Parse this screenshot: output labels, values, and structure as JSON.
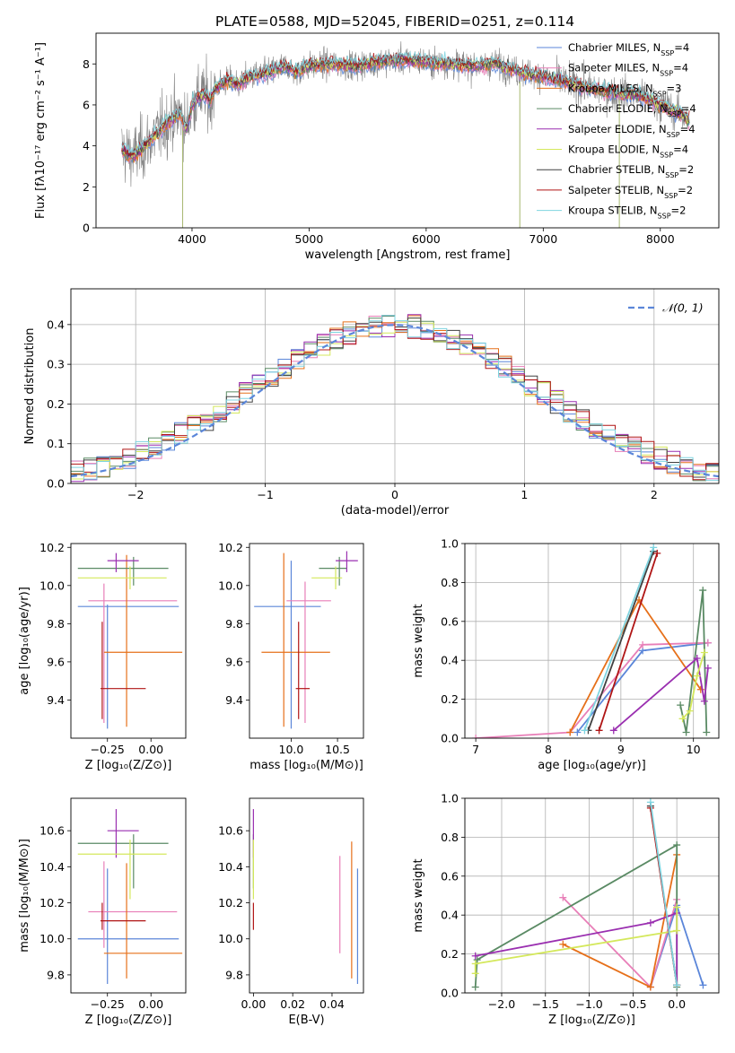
{
  "figure": {
    "title": "PLATE=0588, MJD=52045, FIBERID=0251, z=0.114"
  },
  "colors": {
    "chabrier_miles": "#5b86d9",
    "salpeter_miles": "#e87fb8",
    "kroupa_miles": "#e6701a",
    "chabrier_elodie": "#5a8a64",
    "salpeter_elodie": "#9a2fb0",
    "kroupa_elodie": "#d4e85c",
    "chabrier_stelib": "#404040",
    "salpeter_stelib": "#b01515",
    "kroupa_stelib": "#7fd4e0",
    "data": "#808080",
    "gaussian": "#5b86d9",
    "grid": "#b0b0b0"
  },
  "chart_data": [
    {
      "id": "spectrum",
      "type": "line",
      "title": "PLATE=0588, MJD=52045, FIBERID=0251, z=0.114",
      "xlabel": "wavelength [Angstrom, rest frame]",
      "ylabel": "Flux [fλ10⁻¹⁷ erg cm⁻² s⁻¹ A⁻¹]",
      "xlim": [
        3180,
        8500
      ],
      "ylim": [
        0,
        9.5
      ],
      "xticks": [
        4000,
        5000,
        6000,
        7000,
        8000
      ],
      "yticks": [
        0,
        2,
        4,
        6,
        8
      ],
      "grid": false,
      "legend_position": "top-right",
      "continuum": {
        "x": [
          3400,
          3500,
          3600,
          3700,
          3800,
          3900,
          3950,
          4000,
          4050,
          4100,
          4150,
          4200,
          4300,
          4400,
          4500,
          4600,
          4700,
          4800,
          4900,
          5000,
          5200,
          5400,
          5600,
          5800,
          6000,
          6200,
          6400,
          6600,
          6800,
          7000,
          7200,
          7400,
          7600,
          7800,
          8000,
          8200,
          8250
        ],
        "y": [
          3.8,
          3.5,
          4.0,
          4.6,
          5.2,
          5.6,
          4.8,
          6.0,
          6.4,
          6.5,
          6.2,
          6.8,
          7.2,
          7.0,
          7.4,
          7.5,
          7.7,
          7.9,
          7.6,
          7.9,
          8.0,
          7.9,
          8.1,
          8.2,
          8.1,
          8.0,
          7.9,
          8.0,
          7.6,
          7.4,
          7.1,
          6.8,
          6.6,
          6.5,
          6.0,
          5.5,
          5.2
        ]
      },
      "series": [
        {
          "name": "Chabrier MILES, N_SSP=4",
          "label_main": "Chabrier MILES, N",
          "label_sub": "SSP",
          "label_tail": "=4",
          "color_key": "chabrier_miles"
        },
        {
          "name": "Salpeter MILES, N_SSP=4",
          "label_main": "Salpeter MILES, N",
          "label_sub": "SSP",
          "label_tail": "=4",
          "color_key": "salpeter_miles"
        },
        {
          "name": "Kroupa MILES, N_SSP=3",
          "label_main": "Kroupa MILES, N",
          "label_sub": "SSP",
          "label_tail": "=3",
          "color_key": "kroupa_miles"
        },
        {
          "name": "Chabrier ELODIE, N_SSP=4",
          "label_main": "Chabrier ELODIE, N",
          "label_sub": "SSP",
          "label_tail": "=4",
          "color_key": "chabrier_elodie"
        },
        {
          "name": "Salpeter ELODIE, N_SSP=4",
          "label_main": "Salpeter ELODIE, N",
          "label_sub": "SSP",
          "label_tail": "=4",
          "color_key": "salpeter_elodie"
        },
        {
          "name": "Kroupa ELODIE, N_SSP=4",
          "label_main": "Kroupa ELODIE, N",
          "label_sub": "SSP",
          "label_tail": "=4",
          "color_key": "kroupa_elodie"
        },
        {
          "name": "Chabrier STELIB, N_SSP=2",
          "label_main": "Chabrier STELIB, N",
          "label_sub": "SSP",
          "label_tail": "=2",
          "color_key": "chabrier_stelib"
        },
        {
          "name": "Salpeter STELIB, N_SSP=2",
          "label_main": "Salpeter STELIB, N",
          "label_sub": "SSP",
          "label_tail": "=2",
          "color_key": "salpeter_stelib"
        },
        {
          "name": "Kroupa STELIB, N_SSP=2",
          "label_main": "Kroupa STELIB, N",
          "label_sub": "SSP",
          "label_tail": "=2",
          "color_key": "kroupa_stelib"
        }
      ]
    },
    {
      "id": "residuals",
      "type": "line",
      "xlabel": "(data-model)/error",
      "ylabel": "Normed distribution",
      "xlim": [
        -2.5,
        2.5
      ],
      "ylim": [
        0,
        0.49
      ],
      "xticks": [
        -2,
        -1,
        0,
        1,
        2
      ],
      "xtick_labels": [
        "−2",
        "−1",
        "0",
        "1",
        "2"
      ],
      "yticks": [
        0.0,
        0.1,
        0.2,
        0.3,
        0.4
      ],
      "ytick_labels": [
        "0.0",
        "0.1",
        "0.2",
        "0.3",
        "0.4"
      ],
      "grid": true,
      "legend_position": "top-right",
      "gaussian_label": "𝒩(0, 1)",
      "bin_width": 0.1
    },
    {
      "id": "age_vs_Z",
      "type": "scatter",
      "xlabel": "Z [log₁₀(Z/Z⊙)]",
      "ylabel": "age  [log₁₀(age/yr)]",
      "xlim": [
        -0.46,
        0.2
      ],
      "ylim": [
        9.2,
        10.22
      ],
      "xticks": [
        -0.25,
        0.0
      ],
      "xtick_labels": [
        "−0.25",
        "0.00"
      ],
      "yticks": [
        9.4,
        9.6,
        9.8,
        10.0,
        10.2
      ],
      "ytick_labels": [
        "9.4",
        "9.6",
        "9.8",
        "10.0",
        "10.2"
      ],
      "grid": false,
      "points": [
        {
          "k": "chabrier_miles",
          "x": -0.25,
          "y": 9.89,
          "ex": [
            -0.42,
            0.16
          ],
          "ey": [
            9.25,
            9.9
          ]
        },
        {
          "k": "salpeter_miles",
          "x": -0.27,
          "y": 9.92,
          "ex": [
            -0.36,
            0.15
          ],
          "ey": [
            9.28,
            10.01
          ]
        },
        {
          "k": "kroupa_miles",
          "x": -0.14,
          "y": 9.65,
          "ex": [
            -0.27,
            0.18
          ],
          "ey": [
            9.26,
            10.16
          ]
        },
        {
          "k": "chabrier_elodie",
          "x": -0.1,
          "y": 10.09,
          "ex": [
            -0.42,
            0.1
          ],
          "ey": [
            10.0,
            10.15
          ]
        },
        {
          "k": "salpeter_elodie",
          "x": -0.2,
          "y": 10.13,
          "ex": [
            -0.25,
            -0.07
          ],
          "ey": [
            10.07,
            10.17
          ]
        },
        {
          "k": "kroupa_elodie",
          "x": -0.12,
          "y": 10.04,
          "ex": [
            -0.42,
            0.09
          ],
          "ey": [
            9.98,
            10.1
          ]
        },
        {
          "k": "salpeter_stelib",
          "x": -0.28,
          "y": 9.46,
          "ex": [
            -0.29,
            -0.03
          ],
          "ey": [
            9.3,
            9.81
          ]
        }
      ]
    },
    {
      "id": "age_vs_mass",
      "type": "scatter",
      "xlabel": "mass [log₁₀(M/M⊙)]",
      "xlim": [
        9.55,
        10.78
      ],
      "ylim": [
        9.2,
        10.22
      ],
      "xticks": [
        10.0,
        10.5
      ],
      "xtick_labels": [
        "10.0",
        "10.5"
      ],
      "yticks": [
        9.4,
        9.6,
        9.8,
        10.0,
        10.2
      ],
      "ytick_labels": [
        "9.4",
        "9.6",
        "9.8",
        "10.0",
        "10.2"
      ],
      "grid": false,
      "points": [
        {
          "k": "chabrier_miles",
          "x": 10.0,
          "y": 9.89,
          "ex": [
            9.6,
            10.32
          ],
          "ey": [
            9.25,
            10.13
          ]
        },
        {
          "k": "salpeter_miles",
          "x": 10.15,
          "y": 9.92,
          "ex": [
            9.95,
            10.43
          ],
          "ey": [
            9.28,
            10.02
          ]
        },
        {
          "k": "kroupa_miles",
          "x": 9.92,
          "y": 9.65,
          "ex": [
            9.68,
            10.42
          ],
          "ey": [
            9.26,
            10.17
          ]
        },
        {
          "k": "chabrier_elodie",
          "x": 10.52,
          "y": 10.09,
          "ex": [
            10.3,
            10.6
          ],
          "ey": [
            10.0,
            10.15
          ]
        },
        {
          "k": "salpeter_elodie",
          "x": 10.6,
          "y": 10.13,
          "ex": [
            10.48,
            10.72
          ],
          "ey": [
            10.07,
            10.18
          ]
        },
        {
          "k": "kroupa_elodie",
          "x": 10.48,
          "y": 10.04,
          "ex": [
            10.22,
            10.55
          ],
          "ey": [
            9.98,
            10.1
          ]
        },
        {
          "k": "salpeter_stelib",
          "x": 10.08,
          "y": 9.46,
          "ex": [
            10.05,
            10.2
          ],
          "ey": [
            9.3,
            9.81
          ]
        }
      ]
    },
    {
      "id": "weight_vs_age",
      "type": "line",
      "xlabel": "age  [log₁₀(age/yr)]",
      "ylabel": "mass weight",
      "xlim": [
        6.85,
        10.35
      ],
      "ylim": [
        0,
        1.0
      ],
      "xticks": [
        7,
        8,
        9,
        10
      ],
      "yticks": [
        0.0,
        0.2,
        0.4,
        0.6,
        0.8,
        1.0
      ],
      "ytick_labels": [
        "0.0",
        "0.2",
        "0.4",
        "0.6",
        "0.8",
        "1.0"
      ],
      "grid": true,
      "series": [
        {
          "k": "chabrier_miles",
          "x": [
            8.4,
            9.3,
            10.2
          ],
          "y": [
            0.03,
            0.45,
            0.49
          ]
        },
        {
          "k": "salpeter_miles",
          "x": [
            7.0,
            8.3,
            9.3,
            10.2
          ],
          "y": [
            0.0,
            0.03,
            0.48,
            0.49
          ]
        },
        {
          "k": "kroupa_miles",
          "x": [
            8.3,
            9.25,
            10.1
          ],
          "y": [
            0.03,
            0.71,
            0.25
          ]
        },
        {
          "k": "chabrier_elodie",
          "x": [
            9.82,
            9.9,
            10.13,
            10.18
          ],
          "y": [
            0.17,
            0.03,
            0.76,
            0.03
          ]
        },
        {
          "k": "salpeter_elodie",
          "x": [
            8.9,
            10.05,
            10.15,
            10.2
          ],
          "y": [
            0.04,
            0.41,
            0.19,
            0.36
          ]
        },
        {
          "k": "kroupa_elodie",
          "x": [
            9.85,
            9.95,
            10.05,
            10.15
          ],
          "y": [
            0.1,
            0.14,
            0.32,
            0.44
          ]
        },
        {
          "k": "chabrier_stelib",
          "x": [
            8.55,
            9.45
          ],
          "y": [
            0.04,
            0.96
          ]
        },
        {
          "k": "salpeter_stelib",
          "x": [
            8.7,
            9.5
          ],
          "y": [
            0.04,
            0.95
          ]
        },
        {
          "k": "kroupa_stelib",
          "x": [
            8.5,
            9.45
          ],
          "y": [
            0.04,
            0.98
          ]
        }
      ]
    },
    {
      "id": "mass_vs_Z",
      "type": "scatter",
      "xlabel": "Z [log₁₀(Z/Z⊙)]",
      "ylabel": "mass [log₁₀(M/M⊙)]",
      "xlim": [
        -0.46,
        0.2
      ],
      "ylim": [
        9.7,
        10.78
      ],
      "xticks": [
        -0.25,
        0.0
      ],
      "xtick_labels": [
        "−0.25",
        "0.00"
      ],
      "yticks": [
        9.8,
        10.0,
        10.2,
        10.4,
        10.6
      ],
      "ytick_labels": [
        "9.8",
        "10.0",
        "10.2",
        "10.4",
        "10.6"
      ],
      "grid": false,
      "points": [
        {
          "k": "chabrier_miles",
          "x": -0.25,
          "y": 10.0,
          "ex": [
            -0.42,
            0.16
          ],
          "ey": [
            9.75,
            10.39
          ]
        },
        {
          "k": "salpeter_miles",
          "x": -0.27,
          "y": 10.15,
          "ex": [
            -0.36,
            0.15
          ],
          "ey": [
            9.95,
            10.43
          ]
        },
        {
          "k": "kroupa_miles",
          "x": -0.14,
          "y": 9.92,
          "ex": [
            -0.27,
            0.18
          ],
          "ey": [
            9.78,
            10.42
          ]
        },
        {
          "k": "chabrier_elodie",
          "x": -0.1,
          "y": 10.53,
          "ex": [
            -0.42,
            0.1
          ],
          "ey": [
            10.28,
            10.58
          ]
        },
        {
          "k": "salpeter_elodie",
          "x": -0.2,
          "y": 10.6,
          "ex": [
            -0.25,
            -0.07
          ],
          "ey": [
            10.45,
            10.72
          ]
        },
        {
          "k": "kroupa_elodie",
          "x": -0.12,
          "y": 10.47,
          "ex": [
            -0.42,
            0.09
          ],
          "ey": [
            10.22,
            10.55
          ]
        },
        {
          "k": "salpeter_stelib",
          "x": -0.28,
          "y": 10.1,
          "ex": [
            -0.29,
            -0.03
          ],
          "ey": [
            10.05,
            10.2
          ]
        }
      ]
    },
    {
      "id": "mass_vs_ebv",
      "type": "scatter",
      "xlabel": "E(B-V)",
      "xlim": [
        -0.002,
        0.056
      ],
      "ylim": [
        9.7,
        10.78
      ],
      "xticks": [
        0.0,
        0.02,
        0.04
      ],
      "xtick_labels": [
        "0.00",
        "0.02",
        "0.04"
      ],
      "yticks": [
        9.8,
        10.0,
        10.2,
        10.4,
        10.6
      ],
      "ytick_labels": [
        "9.8",
        "10.0",
        "10.2",
        "10.4",
        "10.6"
      ],
      "grid": false,
      "points": [
        {
          "k": "chabrier_miles",
          "x": 0.053,
          "y": 10.0,
          "ex": [
            0.053,
            0.053
          ],
          "ey": [
            9.75,
            10.39
          ]
        },
        {
          "k": "salpeter_miles",
          "x": 0.044,
          "y": 10.15,
          "ex": [
            0.044,
            0.044
          ],
          "ey": [
            9.92,
            10.46
          ]
        },
        {
          "k": "kroupa_miles",
          "x": 0.05,
          "y": 9.92,
          "ex": [
            0.05,
            0.05
          ],
          "ey": [
            9.78,
            10.54
          ]
        },
        {
          "k": "chabrier_elodie",
          "x": 0.0,
          "y": 10.53,
          "ex": [
            0.0,
            0.0
          ],
          "ey": [
            10.28,
            10.58
          ]
        },
        {
          "k": "salpeter_elodie",
          "x": 0.0,
          "y": 10.6,
          "ex": [
            0.0,
            0.0
          ],
          "ey": [
            10.45,
            10.72
          ]
        },
        {
          "k": "kroupa_elodie",
          "x": 0.0,
          "y": 10.47,
          "ex": [
            0.0,
            0.0
          ],
          "ey": [
            10.22,
            10.55
          ]
        },
        {
          "k": "salpeter_stelib",
          "x": 0.0,
          "y": 10.1,
          "ex": [
            0.0,
            0.0
          ],
          "ey": [
            10.05,
            10.2
          ]
        }
      ]
    },
    {
      "id": "weight_vs_Z",
      "type": "line",
      "xlabel": "Z [log₁₀(Z/Z⊙)]",
      "ylabel": "mass weight",
      "xlim": [
        -2.42,
        0.48
      ],
      "ylim": [
        0,
        1.0
      ],
      "xticks": [
        -2.0,
        -1.5,
        -1.0,
        -0.5,
        0.0
      ],
      "xtick_labels": [
        "−2.0",
        "−1.5",
        "−1.0",
        "−0.5",
        "0.0"
      ],
      "yticks": [
        0.0,
        0.2,
        0.4,
        0.6,
        0.8,
        1.0
      ],
      "ytick_labels": [
        "0.0",
        "0.2",
        "0.4",
        "0.6",
        "0.8",
        "1.0"
      ],
      "grid": true,
      "series": [
        {
          "k": "chabrier_miles",
          "x": [
            -0.3,
            0.0,
            0.3
          ],
          "y": [
            0.03,
            0.45,
            0.04
          ]
        },
        {
          "k": "salpeter_miles",
          "x": [
            -1.3,
            -0.3,
            0.0
          ],
          "y": [
            0.49,
            0.03,
            0.48
          ]
        },
        {
          "k": "kroupa_miles",
          "x": [
            -1.3,
            -0.3,
            0.0
          ],
          "y": [
            0.25,
            0.03,
            0.71
          ]
        },
        {
          "k": "chabrier_elodie",
          "x": [
            -2.3,
            -2.28,
            0.0,
            0.0
          ],
          "y": [
            0.03,
            0.17,
            0.76,
            0.03
          ]
        },
        {
          "k": "salpeter_elodie",
          "x": [
            -2.3,
            -0.3,
            0.0,
            0.0
          ],
          "y": [
            0.19,
            0.36,
            0.41,
            0.04
          ]
        },
        {
          "k": "kroupa_elodie",
          "x": [
            -2.3,
            -2.3,
            0.0,
            0.0
          ],
          "y": [
            0.1,
            0.15,
            0.32,
            0.44
          ]
        },
        {
          "k": "chabrier_stelib",
          "x": [
            -0.3,
            0.0
          ],
          "y": [
            0.96,
            0.04
          ]
        },
        {
          "k": "salpeter_stelib",
          "x": [
            -0.3,
            0.0
          ],
          "y": [
            0.95,
            0.04
          ]
        },
        {
          "k": "kroupa_stelib",
          "x": [
            -0.3,
            0.0
          ],
          "y": [
            0.98,
            0.04
          ]
        }
      ]
    }
  ]
}
